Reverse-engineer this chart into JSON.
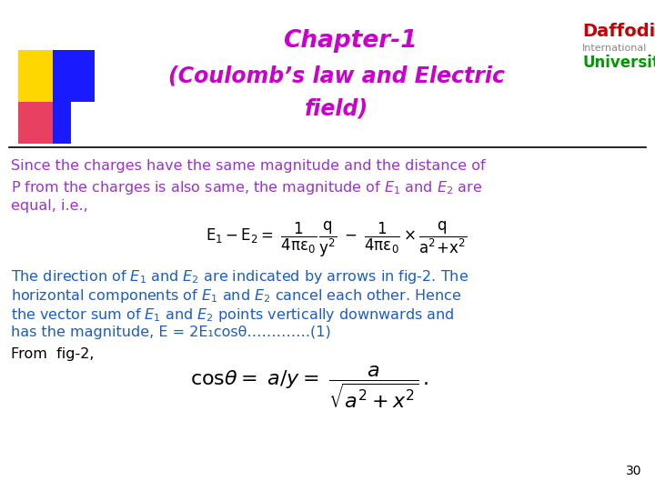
{
  "bg_color": "#ffffff",
  "title_line1": "Chapter-1",
  "title_line2": "(Coulomb’s law and Electric",
  "title_line3": "field)",
  "title_color": "#cc00cc",
  "body_color": "#9933cc",
  "body2_color": "#1a5ccc",
  "from_fig_color": "#000000",
  "eq_color": "#000000",
  "separator_color": "#000000",
  "para1_line1": "Since the charges have the same magnitude and the distance of",
  "para1_line2": "P from the charges is also same, the magnitude of E",
  "para1_line2b": " and E",
  "para1_line2c": " are",
  "para1_line3": "equal, i.e.,",
  "para2_line1": "The direction of ",
  "para2_line1b": " and ",
  "para2_line1c": " are indicated by arrows in fig-2. The",
  "para2_line2": "horizontal components of ",
  "para2_line2b": " and ",
  "para2_line2c": " cancel each other. Hence",
  "para2_line3": "the vector sum of ",
  "para2_line3b": " and ",
  "para2_line3c": " points vertically downwards and",
  "para2_line4": "has the magnitude, E = 2E₁cosθ………….(1)",
  "para2_line5": "From  fig-2,",
  "page_number": "30",
  "daffodil_color": "#cc0000",
  "univ_color": "#009900"
}
